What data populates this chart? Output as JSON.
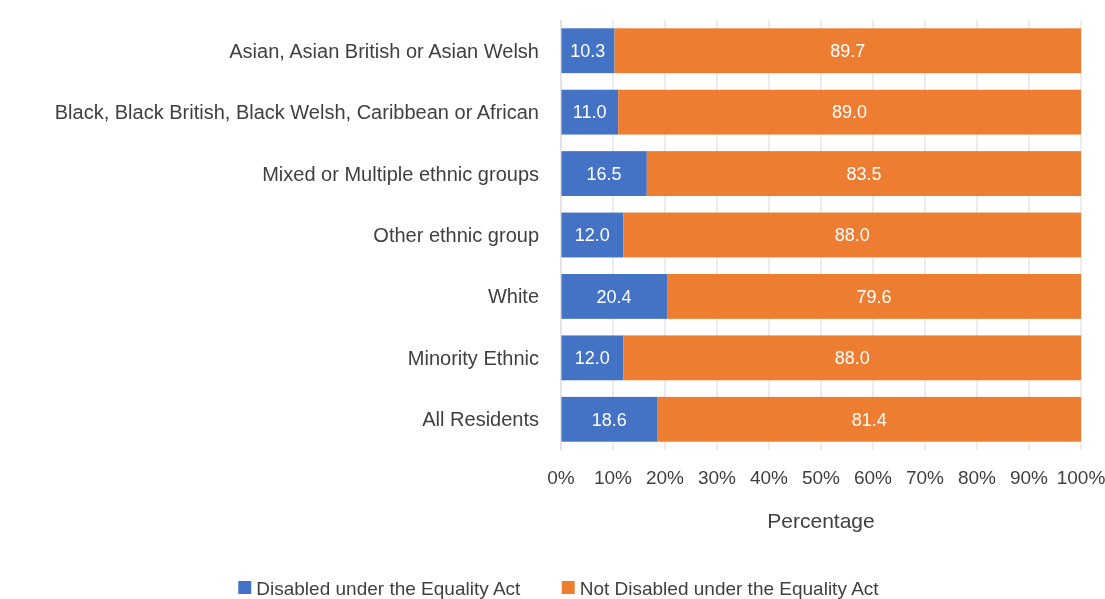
{
  "chart_data": {
    "type": "bar",
    "orientation": "horizontal",
    "stacked": true,
    "xlabel": "Percentage",
    "categories": [
      "Asian, Asian British or Asian Welsh",
      "Black, Black British, Black Welsh, Caribbean or African",
      "Mixed or Multiple ethnic groups",
      "Other ethnic group",
      "White",
      "Minority Ethnic",
      "All Residents"
    ],
    "series": [
      {
        "name": "Disabled under the Equality Act",
        "color": "#4472c4",
        "values": [
          10.3,
          11.0,
          16.5,
          12.0,
          20.4,
          12.0,
          18.6
        ]
      },
      {
        "name": "Not Disabled under the Equality Act",
        "color": "#ed7d31",
        "values": [
          89.7,
          89.0,
          83.5,
          88.0,
          79.6,
          88.0,
          81.4
        ]
      }
    ],
    "value_labels": [
      [
        "10.3",
        "11.0",
        "16.5",
        "12.0",
        "20.4",
        "12.0",
        "18.6"
      ],
      [
        "89.7",
        "89.0",
        "83.5",
        "88.0",
        "79.6",
        "88.0",
        "81.4"
      ]
    ],
    "xlim": [
      0,
      100
    ],
    "xticks": [
      {
        "value": 0,
        "label": "0%"
      },
      {
        "value": 10,
        "label": "10%"
      },
      {
        "value": 20,
        "label": "20%"
      },
      {
        "value": 30,
        "label": "30%"
      },
      {
        "value": 40,
        "label": "40%"
      },
      {
        "value": 50,
        "label": "50%"
      },
      {
        "value": 60,
        "label": "60%"
      },
      {
        "value": 70,
        "label": "70%"
      },
      {
        "value": 80,
        "label": "80%"
      },
      {
        "value": 90,
        "label": "90%"
      },
      {
        "value": 100,
        "label": "100%"
      }
    ],
    "grid": "x",
    "legend": "bottom"
  }
}
